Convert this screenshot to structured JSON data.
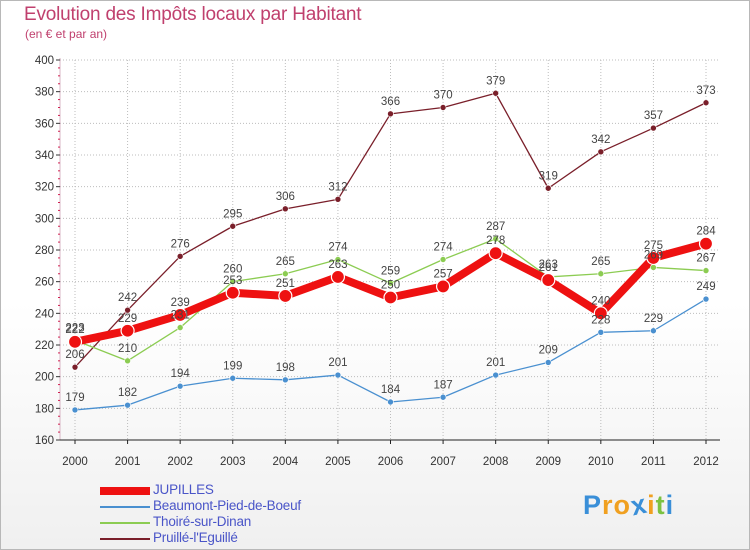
{
  "title": "Evolution des Impôts locaux par Habitant",
  "subtitle": "(en € et par an)",
  "logo": {
    "letters": [
      "P",
      "r",
      "o",
      "x",
      "i",
      "t",
      "i"
    ],
    "colors": [
      "#3a8fd8",
      "#f0a020",
      "#f0a020",
      "#3a8fd8",
      "#f0a020",
      "#7cc242",
      "#3a8fd8"
    ]
  },
  "chart_data": {
    "type": "line",
    "title": "Evolution des Impôts locaux par Habitant",
    "subtitle": "(en € et par an)",
    "xlabel": "",
    "ylabel": "",
    "ylim": [
      160,
      400
    ],
    "yticks": [
      160,
      180,
      200,
      220,
      240,
      260,
      280,
      300,
      320,
      340,
      360,
      380,
      400
    ],
    "grid": true,
    "legend_position": "bottom-left",
    "categories": [
      "2000",
      "2001",
      "2002",
      "2003",
      "2004",
      "2005",
      "2006",
      "2007",
      "2008",
      "2009",
      "2010",
      "2011",
      "2012"
    ],
    "series": [
      {
        "name": "Pruillé-l'Eguillé",
        "color": "#7a1f2a",
        "values": [
          206,
          242,
          276,
          295,
          306,
          312,
          366,
          370,
          379,
          319,
          342,
          357,
          373
        ]
      },
      {
        "name": "Beaumont-Pied-de-Boeuf",
        "color": "#4a90d0",
        "values": [
          179,
          182,
          194,
          199,
          198,
          201,
          184,
          187,
          201,
          209,
          228,
          229,
          249
        ]
      },
      {
        "name": "Thoiré-sur-Dinan",
        "color": "#8ccc52",
        "values": [
          223,
          210,
          231,
          260,
          265,
          274,
          259,
          274,
          287,
          263,
          265,
          269,
          267
        ]
      },
      {
        "name": "JUPILLES",
        "color": "#ee1111",
        "values": [
          222,
          229,
          239,
          253,
          251,
          263,
          250,
          257,
          278,
          261,
          240,
          275,
          284
        ]
      }
    ],
    "legend": [
      "JUPILLES",
      "Beaumont-Pied-de-Boeuf",
      "Thoiré-sur-Dinan",
      "Pruillé-l'Eguillé"
    ]
  }
}
